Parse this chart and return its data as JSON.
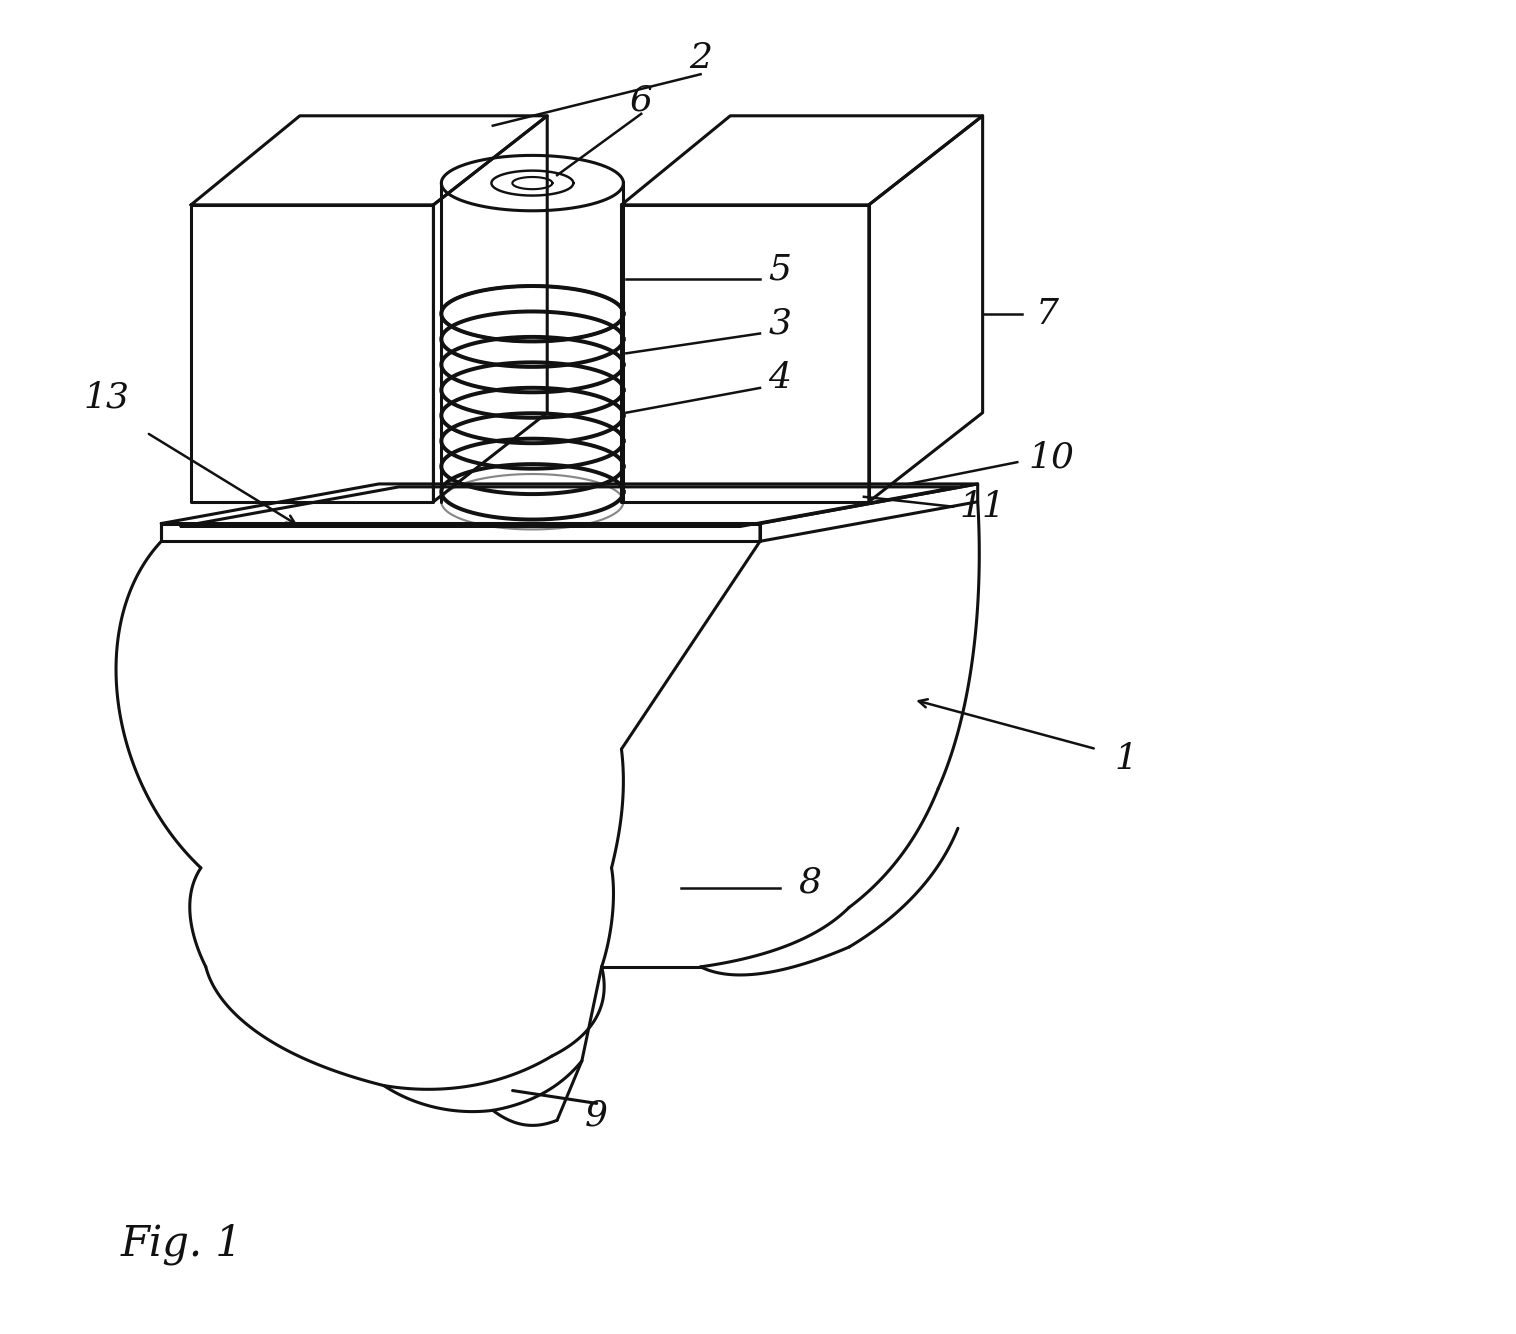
{
  "bg_color": "#ffffff",
  "line_color": "#111111",
  "line_width": 2.2,
  "fig_width": 15.16,
  "fig_height": 13.34,
  "dpi": 100
}
